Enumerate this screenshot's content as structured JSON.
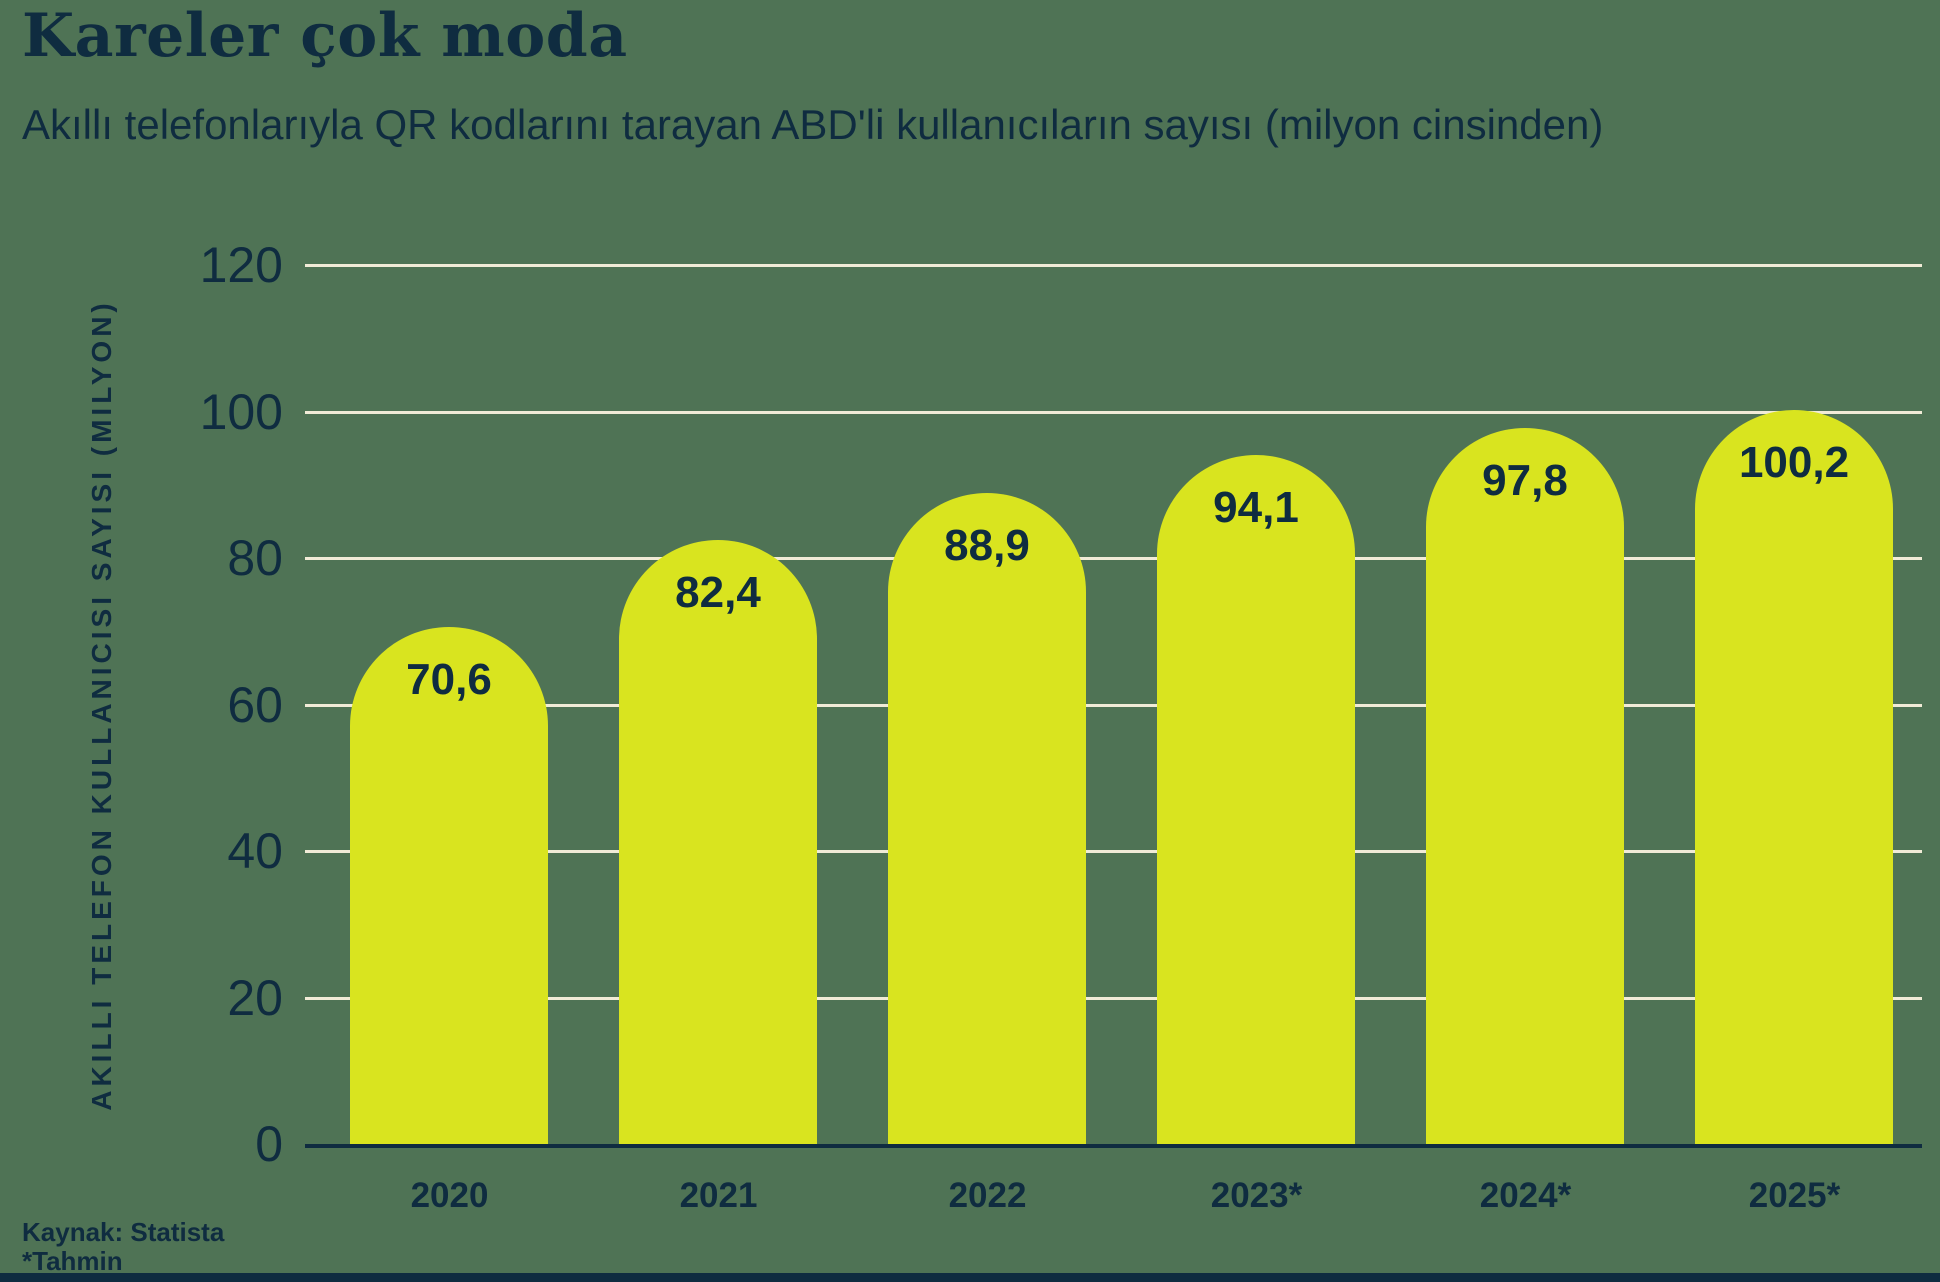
{
  "chart_data": {
    "type": "bar",
    "title": "Kareler çok moda",
    "subtitle": "Akıllı telefonlarıyla QR kodlarını tarayan ABD'li kullanıcıların sayısı (milyon cinsinden)",
    "ylabel": "AKILLI TELEFON KULLANICISI SAYISI (MILYON)",
    "categories": [
      "2020",
      "2021",
      "2022",
      "2023*",
      "2024*",
      "2025*"
    ],
    "values": [
      70.6,
      82.4,
      88.9,
      94.1,
      97.8,
      100.2
    ],
    "value_labels": [
      "70,6",
      "82,4",
      "88,9",
      "94,1",
      "97,8",
      "100,2"
    ],
    "yticks": [
      0,
      20,
      40,
      60,
      80,
      100,
      120
    ],
    "ylim": [
      0,
      120
    ],
    "grid": "horizontal-only",
    "legend": "none",
    "source": "Kaynak: Statista",
    "footnote": "*Tahmin",
    "colors": {
      "background": "#4f7355",
      "bar": "#d9e41f",
      "gridline": "#f1ebd7",
      "text": "#0f2c40"
    }
  }
}
